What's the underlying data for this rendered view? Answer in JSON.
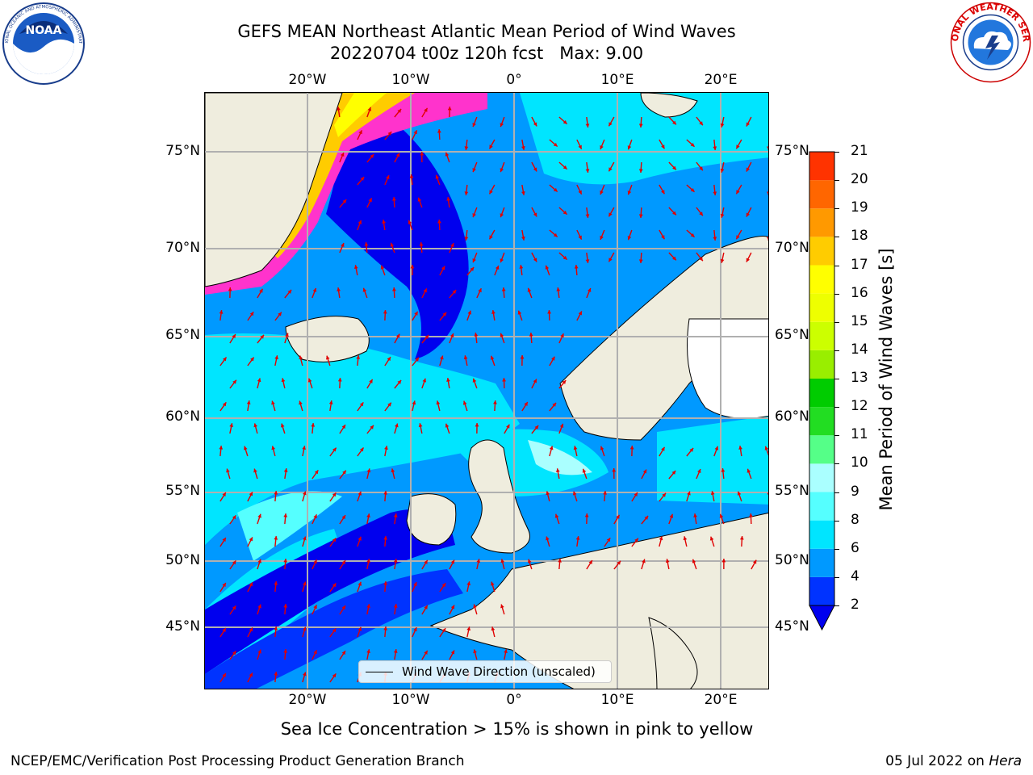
{
  "title": {
    "line1": "GEFS MEAN Northeast Atlantic Mean Period of Wind Waves",
    "line2": "20220704 t00z 120h fcst   Max: 9.00"
  },
  "logos": {
    "left": {
      "icon": "noaa-logo",
      "text": "NOAA"
    },
    "right": {
      "icon": "nws-logo",
      "text": "NATIONAL WEATHER SERVICE"
    }
  },
  "map": {
    "lon_labels": [
      "20°W",
      "10°W",
      "0°",
      "10°E",
      "20°E"
    ],
    "lat_labels": [
      "75°N",
      "70°N",
      "65°N",
      "60°N",
      "55°N",
      "50°N",
      "45°N"
    ],
    "legend": "Wind Wave Direction (unscaled)",
    "arrow_color": "#e00000",
    "land_color": "#efedde",
    "grid_color": "#b0b0b0"
  },
  "colorbar": {
    "label": "Mean Period of Wind Waves [s]",
    "ticks": [
      "2",
      "4",
      "6",
      "8",
      "9",
      "10",
      "11",
      "12",
      "13",
      "14",
      "15",
      "16",
      "17",
      "18",
      "19",
      "20",
      "21"
    ],
    "colors": [
      "#0033ff",
      "#0099ff",
      "#00e5ff",
      "#55ffff",
      "#aaffff",
      "#55ff88",
      "#22dd22",
      "#00cc00",
      "#99ee00",
      "#ccff00",
      "#eeff00",
      "#ffff00",
      "#ffcc00",
      "#ff9900",
      "#ff6600",
      "#ff3300",
      "#ff0000"
    ],
    "under_color": "#0000ee"
  },
  "bottom_note": "Sea Ice Concentration > 15% is shown in pink to yellow",
  "footer": {
    "left": "NCEP/EMC/Verification Post Processing Product Generation Branch",
    "right_date": "05 Jul 2022 on ",
    "right_machine": "Hera"
  }
}
